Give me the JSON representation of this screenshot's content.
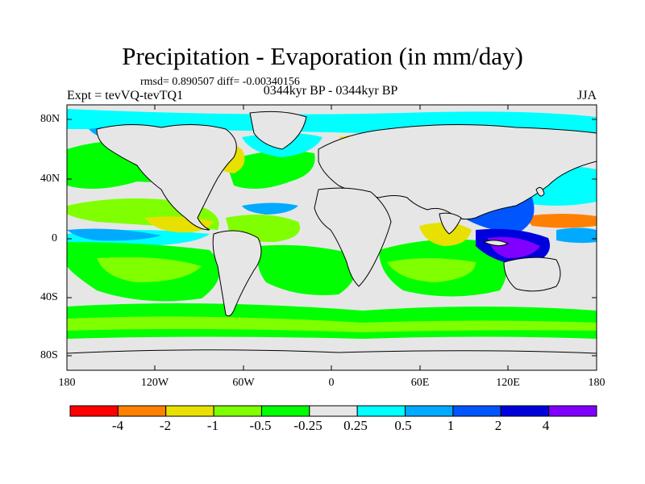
{
  "header": {
    "title": "Precipitation - Evaporation (in mm/day)",
    "stats": "rmsd= 0.890507  diff= -0.00340156",
    "expt": "Expt = tevVQ-tevTQ1",
    "center_label": "0344kyr BP - 0344kyr BP",
    "season": "JJA"
  },
  "axes": {
    "y_ticks": [
      "80N",
      "40N",
      "0",
      "40S",
      "80S"
    ],
    "x_ticks": [
      "180",
      "120W",
      "60W",
      "0",
      "60E",
      "120E",
      "180"
    ]
  },
  "colorbar": {
    "labels": [
      "-4",
      "-2",
      "-1",
      "-0.5",
      "-0.25",
      "0.25",
      "0.5",
      "1",
      "2",
      "4"
    ],
    "colors": [
      "#ff0000",
      "#ff8000",
      "#e8e000",
      "#80ff00",
      "#00ff00",
      "#e6e6e6",
      "#00ffff",
      "#00aaff",
      "#0055ff",
      "#0000dd",
      "#8000ff"
    ]
  },
  "map_colors": {
    "ocean_neutral": "#e6e6e6",
    "land": "#e6e6e6",
    "coast": "#000000"
  }
}
